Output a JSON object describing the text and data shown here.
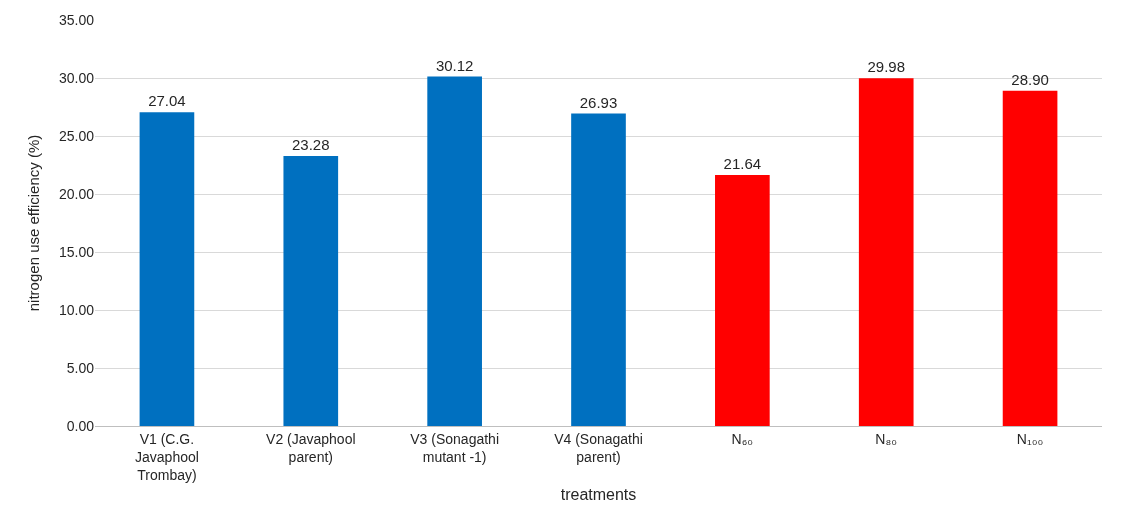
{
  "chart_data": {
    "type": "bar",
    "xlabel": "treatments",
    "ylabel": "nitrogen use efficiency (%)",
    "categories": [
      "V1 (C.G.\nJavaphool\nTrombay)",
      "V2 (Javaphool\nparent)",
      "V3 (Sonagathi\nmutant -1)",
      "V4 (Sonagathi\nparent)",
      "N₆₀",
      "N₈₀",
      "N₁₀₀"
    ],
    "values": [
      27.04,
      23.28,
      30.12,
      26.93,
      21.64,
      29.98,
      28.9
    ],
    "value_labels": [
      "27.04",
      "23.28",
      "30.12",
      "26.93",
      "21.64",
      "29.98",
      "28.90"
    ],
    "colors": [
      "#0070c0",
      "#0070c0",
      "#0070c0",
      "#0070c0",
      "#ff0000",
      "#ff0000",
      "#ff0000"
    ],
    "ylim": [
      0,
      35
    ],
    "yticks": [
      {
        "value": 0,
        "label": "0.00"
      },
      {
        "value": 5,
        "label": "5.00"
      },
      {
        "value": 10,
        "label": "10.00"
      },
      {
        "value": 15,
        "label": "15.00"
      },
      {
        "value": 20,
        "label": "20.00"
      },
      {
        "value": 25,
        "label": "25.00"
      },
      {
        "value": 30,
        "label": "30.00"
      },
      {
        "value": 35,
        "label": "35.00"
      }
    ],
    "grid": "y"
  }
}
